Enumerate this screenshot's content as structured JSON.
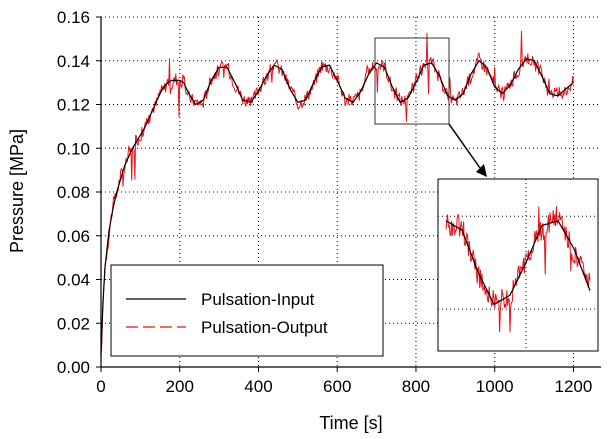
{
  "chart_data": {
    "type": "line",
    "xlabel": "Time [s]",
    "ylabel": "Pressure [MPa]",
    "xlim": [
      0,
      1270
    ],
    "ylim": [
      0.0,
      0.16
    ],
    "xticks": [
      0,
      200,
      400,
      600,
      800,
      1000,
      1200
    ],
    "yticks": [
      0.0,
      0.02,
      0.04,
      0.06,
      0.08,
      0.1,
      0.12,
      0.14,
      0.16
    ],
    "xtick_labels": [
      "0",
      "200",
      "400",
      "600",
      "800",
      "1000",
      "1200"
    ],
    "ytick_labels": [
      "0.00",
      "0.02",
      "0.04",
      "0.06",
      "0.08",
      "0.10",
      "0.12",
      "0.14",
      "0.16"
    ],
    "grid": true,
    "legend_position": "bottom-left",
    "series": [
      {
        "name": "Pulsation-Input",
        "color": "#000000",
        "style": "solid",
        "x": [
          0,
          5,
          10,
          20,
          30,
          40,
          50,
          60,
          70,
          80,
          90,
          100,
          110,
          120,
          130,
          140,
          150,
          160,
          170,
          180,
          190,
          200,
          210,
          220,
          240,
          260,
          280,
          300,
          320,
          340,
          360,
          380,
          400,
          420,
          440,
          460,
          480,
          500,
          520,
          540,
          560,
          580,
          600,
          620,
          640,
          660,
          680,
          700,
          720,
          740,
          760,
          780,
          800,
          820,
          840,
          860,
          880,
          900,
          920,
          940,
          960,
          980,
          1000,
          1020,
          1040,
          1060,
          1080,
          1100,
          1120,
          1140,
          1160,
          1180,
          1200
        ],
        "y": [
          0.005,
          0.03,
          0.045,
          0.062,
          0.072,
          0.08,
          0.086,
          0.092,
          0.096,
          0.1,
          0.103,
          0.106,
          0.109,
          0.113,
          0.117,
          0.121,
          0.125,
          0.128,
          0.13,
          0.131,
          0.131,
          0.131,
          0.13,
          0.126,
          0.12,
          0.122,
          0.131,
          0.137,
          0.137,
          0.13,
          0.122,
          0.121,
          0.126,
          0.133,
          0.138,
          0.136,
          0.127,
          0.121,
          0.122,
          0.13,
          0.137,
          0.138,
          0.131,
          0.123,
          0.121,
          0.126,
          0.134,
          0.139,
          0.137,
          0.128,
          0.121,
          0.123,
          0.13,
          0.138,
          0.139,
          0.133,
          0.124,
          0.122,
          0.125,
          0.134,
          0.14,
          0.137,
          0.128,
          0.125,
          0.129,
          0.136,
          0.141,
          0.14,
          0.133,
          0.125,
          0.124,
          0.127,
          0.13
        ]
      },
      {
        "name": "Pulsation-Output",
        "color": "#e8131b",
        "style": "dashed",
        "x": [
          0,
          5,
          10,
          20,
          30,
          40,
          50,
          60,
          70,
          80,
          90,
          100,
          110,
          120,
          130,
          140,
          150,
          160,
          170,
          180,
          190,
          200,
          210,
          220,
          240,
          260,
          280,
          300,
          320,
          340,
          360,
          380,
          400,
          420,
          440,
          460,
          480,
          500,
          520,
          540,
          560,
          580,
          600,
          620,
          640,
          660,
          680,
          700,
          720,
          740,
          760,
          780,
          800,
          820,
          840,
          860,
          880,
          900,
          920,
          940,
          960,
          980,
          1000,
          1020,
          1040,
          1060,
          1080,
          1100,
          1120,
          1140,
          1160,
          1180,
          1200
        ],
        "y": [
          0.004,
          0.028,
          0.046,
          0.06,
          0.074,
          0.079,
          0.088,
          0.09,
          0.098,
          0.099,
          0.104,
          0.105,
          0.11,
          0.112,
          0.118,
          0.12,
          0.126,
          0.127,
          0.131,
          0.129,
          0.132,
          0.13,
          0.131,
          0.124,
          0.121,
          0.121,
          0.132,
          0.136,
          0.138,
          0.129,
          0.123,
          0.12,
          0.127,
          0.132,
          0.139,
          0.135,
          0.128,
          0.12,
          0.123,
          0.129,
          0.138,
          0.137,
          0.132,
          0.122,
          0.122,
          0.125,
          0.135,
          0.138,
          0.138,
          0.127,
          0.122,
          0.122,
          0.131,
          0.137,
          0.14,
          0.132,
          0.125,
          0.121,
          0.126,
          0.133,
          0.141,
          0.136,
          0.129,
          0.124,
          0.13,
          0.135,
          0.142,
          0.139,
          0.134,
          0.124,
          0.125,
          0.126,
          0.131
        ]
      }
    ]
  },
  "colors": {
    "input_line": "#000000",
    "output_line": "#e8131b",
    "grid": "#000000",
    "arrow": "#000000"
  }
}
